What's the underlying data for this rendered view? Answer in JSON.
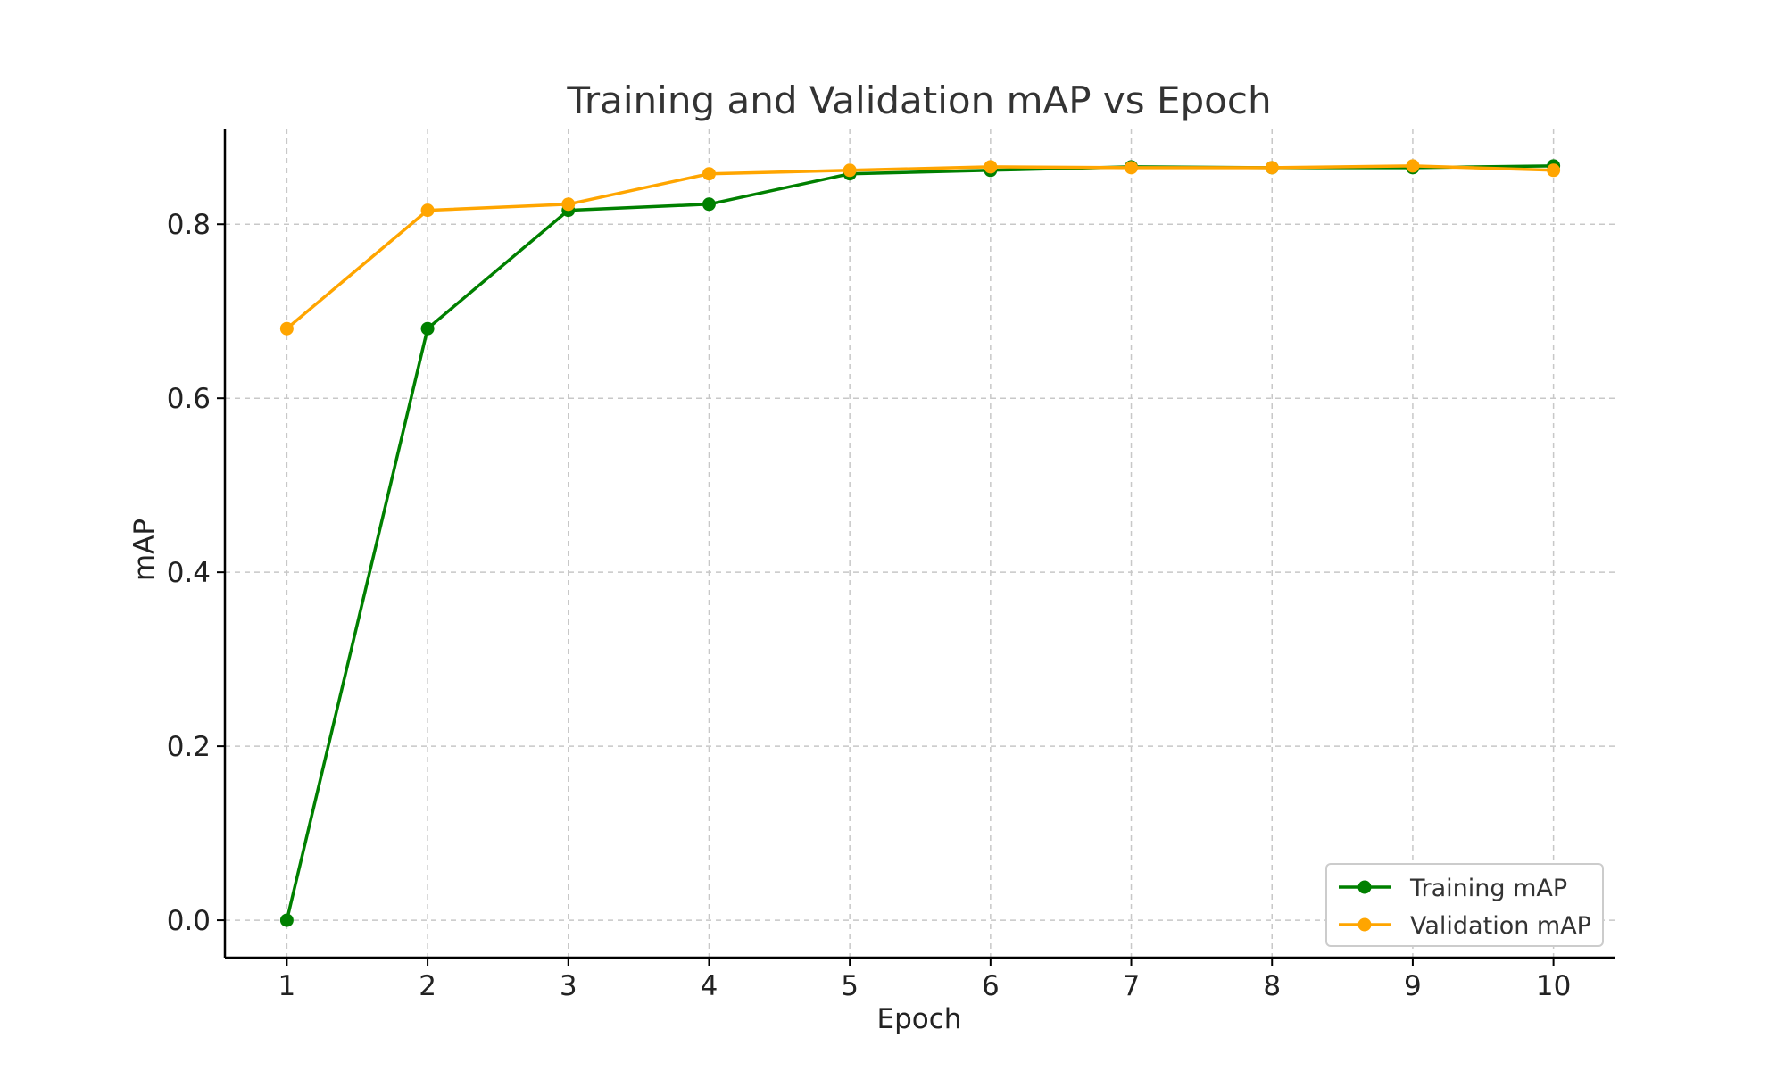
{
  "chart_data": {
    "type": "line",
    "title": "Training and Validation mAP vs Epoch",
    "xlabel": "Epoch",
    "ylabel": "mAP",
    "x": [
      1,
      2,
      3,
      4,
      5,
      6,
      7,
      8,
      9,
      10
    ],
    "xlim": [
      0.56,
      10.44
    ],
    "ylim": [
      -0.043,
      0.91
    ],
    "yticks": [
      0.0,
      0.2,
      0.4,
      0.6,
      0.8
    ],
    "ytick_labels": [
      "0.0",
      "0.2",
      "0.4",
      "0.6",
      "0.8"
    ],
    "xtick_labels": [
      "1",
      "2",
      "3",
      "4",
      "5",
      "6",
      "7",
      "8",
      "9",
      "10"
    ],
    "grid": true,
    "legend_position": "lower-right",
    "series": [
      {
        "name": "Training mAP",
        "color": "#008000",
        "marker": "circle",
        "values": [
          0.0,
          0.68,
          0.816,
          0.823,
          0.858,
          0.862,
          0.866,
          0.865,
          0.865,
          0.867
        ]
      },
      {
        "name": "Validation mAP",
        "color": "#FFA500",
        "marker": "circle",
        "values": [
          0.68,
          0.816,
          0.823,
          0.858,
          0.862,
          0.866,
          0.865,
          0.865,
          0.867,
          0.862
        ]
      }
    ]
  }
}
